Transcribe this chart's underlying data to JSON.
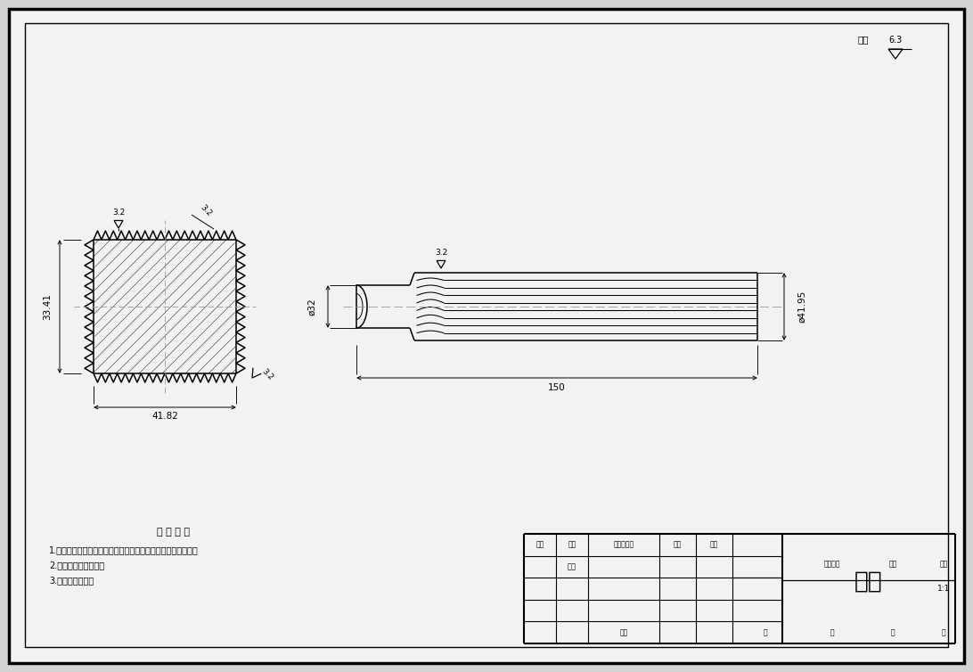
{
  "title": "花键",
  "bg_color": "#d4d4d4",
  "paper_color": "#f2f2f2",
  "lc": "#000000",
  "cl_color": "#888888",
  "tech_title": "技 术 要 求",
  "tech_items": [
    "1.零件加工表面上，不应有划痕、擦伤等损伤零件表面的缺陷。",
    "2.零件须去除氧化皮。",
    "3.去除毛刺飞边。"
  ],
  "tbl_row1": [
    "标记",
    "数量",
    "更改文件名",
    "签字",
    "日期"
  ],
  "tbl_design": "设计",
  "tbl_mid_hdrs": [
    "图样标记",
    "重量",
    "比例"
  ],
  "tbl_scale": "1:1",
  "tbl_bottom": [
    "日期",
    "共",
    "张",
    "第",
    "张"
  ],
  "dim_gw": "41.82",
  "dim_gh": "33.41",
  "dim_sl": "150",
  "dim_neck": "ø32",
  "dim_outer": "ø41.95",
  "dim_r1": "3.2",
  "dim_r2": "3.2",
  "dim_r3": "3.2",
  "dim_global": "6.3",
  "dim_global_label": "其余"
}
